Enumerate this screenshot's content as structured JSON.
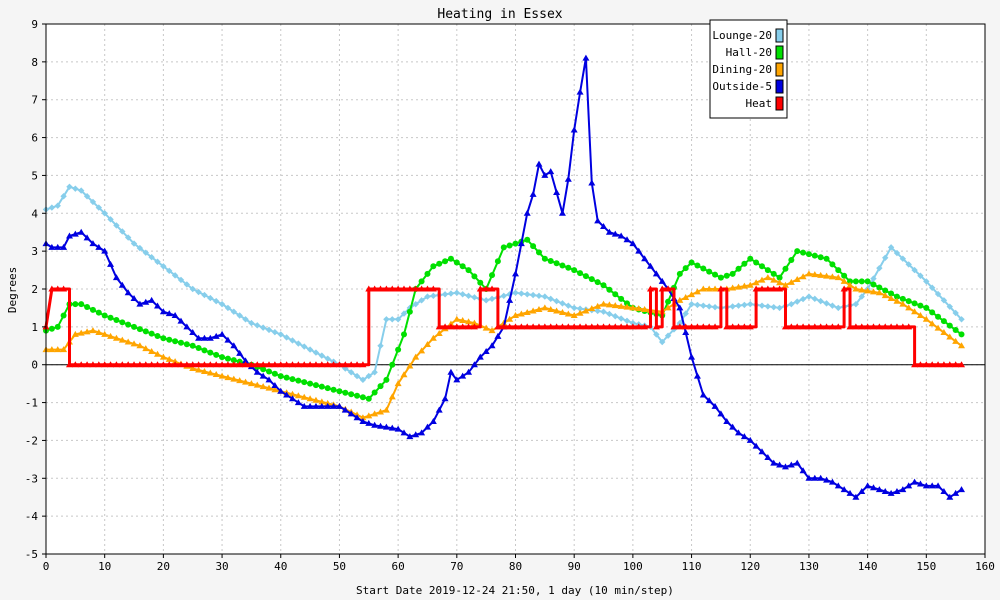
{
  "chart_data": {
    "type": "line",
    "title": "Heating in Essex",
    "xlabel": "Start Date 2019-12-24 21:50, 1 day (10 min/step)",
    "ylabel": "Degrees",
    "xlim": [
      0,
      160
    ],
    "ylim": [
      -5,
      9
    ],
    "x_ticks": [
      0,
      10,
      20,
      30,
      40,
      50,
      60,
      70,
      80,
      90,
      100,
      110,
      120,
      130,
      140,
      150,
      160
    ],
    "y_ticks": [
      -5,
      -4,
      -3,
      -2,
      -1,
      0,
      1,
      2,
      3,
      4,
      5,
      6,
      7,
      8,
      9
    ],
    "grid": true,
    "legend_position": "top-right",
    "series": [
      {
        "name": "Lounge-20",
        "color": "#87ceeb",
        "marker": "diamond",
        "points": [
          [
            0,
            4.1
          ],
          [
            2,
            4.2
          ],
          [
            4,
            4.7
          ],
          [
            6,
            4.6
          ],
          [
            10,
            4.0
          ],
          [
            15,
            3.2
          ],
          [
            20,
            2.6
          ],
          [
            25,
            2.0
          ],
          [
            30,
            1.6
          ],
          [
            35,
            1.1
          ],
          [
            40,
            0.8
          ],
          [
            45,
            0.4
          ],
          [
            50,
            0.0
          ],
          [
            54,
            -0.4
          ],
          [
            56,
            -0.2
          ],
          [
            58,
            1.2
          ],
          [
            60,
            1.2
          ],
          [
            62,
            1.5
          ],
          [
            65,
            1.8
          ],
          [
            70,
            1.9
          ],
          [
            75,
            1.7
          ],
          [
            80,
            1.9
          ],
          [
            85,
            1.8
          ],
          [
            90,
            1.5
          ],
          [
            95,
            1.4
          ],
          [
            100,
            1.1
          ],
          [
            103,
            1.0
          ],
          [
            105,
            0.6
          ],
          [
            108,
            1.1
          ],
          [
            110,
            1.6
          ],
          [
            115,
            1.5
          ],
          [
            120,
            1.6
          ],
          [
            125,
            1.5
          ],
          [
            127,
            1.6
          ],
          [
            130,
            1.8
          ],
          [
            135,
            1.5
          ],
          [
            138,
            1.6
          ],
          [
            140,
            2.0
          ],
          [
            144,
            3.1
          ],
          [
            150,
            2.2
          ],
          [
            156,
            1.2
          ]
        ]
      },
      {
        "name": "Hall-20",
        "color": "#00e000",
        "marker": "circle",
        "points": [
          [
            0,
            0.9
          ],
          [
            2,
            1.0
          ],
          [
            4,
            1.6
          ],
          [
            6,
            1.6
          ],
          [
            10,
            1.3
          ],
          [
            15,
            1.0
          ],
          [
            20,
            0.7
          ],
          [
            25,
            0.5
          ],
          [
            30,
            0.2
          ],
          [
            35,
            0.0
          ],
          [
            40,
            -0.3
          ],
          [
            45,
            -0.5
          ],
          [
            50,
            -0.7
          ],
          [
            55,
            -0.9
          ],
          [
            58,
            -0.4
          ],
          [
            61,
            0.8
          ],
          [
            63,
            2.0
          ],
          [
            66,
            2.6
          ],
          [
            69,
            2.8
          ],
          [
            72,
            2.5
          ],
          [
            75,
            2.0
          ],
          [
            78,
            3.1
          ],
          [
            82,
            3.3
          ],
          [
            85,
            2.8
          ],
          [
            90,
            2.5
          ],
          [
            95,
            2.1
          ],
          [
            100,
            1.5
          ],
          [
            105,
            1.3
          ],
          [
            108,
            2.4
          ],
          [
            110,
            2.7
          ],
          [
            115,
            2.3
          ],
          [
            117,
            2.4
          ],
          [
            120,
            2.8
          ],
          [
            125,
            2.3
          ],
          [
            128,
            3.0
          ],
          [
            133,
            2.8
          ],
          [
            137,
            2.2
          ],
          [
            140,
            2.2
          ],
          [
            145,
            1.8
          ],
          [
            150,
            1.5
          ],
          [
            156,
            0.8
          ]
        ]
      },
      {
        "name": "Dining-20",
        "color": "#ffa500",
        "marker": "triangle",
        "points": [
          [
            0,
            0.4
          ],
          [
            3,
            0.4
          ],
          [
            5,
            0.8
          ],
          [
            8,
            0.9
          ],
          [
            12,
            0.7
          ],
          [
            16,
            0.5
          ],
          [
            20,
            0.2
          ],
          [
            25,
            -0.1
          ],
          [
            30,
            -0.3
          ],
          [
            35,
            -0.5
          ],
          [
            40,
            -0.7
          ],
          [
            45,
            -0.9
          ],
          [
            50,
            -1.1
          ],
          [
            54,
            -1.4
          ],
          [
            58,
            -1.2
          ],
          [
            60,
            -0.5
          ],
          [
            63,
            0.2
          ],
          [
            66,
            0.7
          ],
          [
            70,
            1.2
          ],
          [
            73,
            1.1
          ],
          [
            76,
            0.9
          ],
          [
            80,
            1.3
          ],
          [
            85,
            1.5
          ],
          [
            90,
            1.3
          ],
          [
            95,
            1.6
          ],
          [
            100,
            1.5
          ],
          [
            105,
            1.4
          ],
          [
            108,
            1.7
          ],
          [
            112,
            2.0
          ],
          [
            116,
            2.0
          ],
          [
            120,
            2.1
          ],
          [
            123,
            2.3
          ],
          [
            126,
            2.1
          ],
          [
            130,
            2.4
          ],
          [
            135,
            2.3
          ],
          [
            138,
            2.0
          ],
          [
            142,
            1.9
          ],
          [
            146,
            1.6
          ],
          [
            150,
            1.2
          ],
          [
            156,
            0.5
          ]
        ]
      },
      {
        "name": "Outside-5",
        "color": "#0000e0",
        "marker": "triangle",
        "points": [
          [
            0,
            3.2
          ],
          [
            1,
            3.1
          ],
          [
            3,
            3.1
          ],
          [
            4,
            3.4
          ],
          [
            6,
            3.5
          ],
          [
            8,
            3.2
          ],
          [
            10,
            3.0
          ],
          [
            12,
            2.3
          ],
          [
            14,
            1.9
          ],
          [
            16,
            1.6
          ],
          [
            18,
            1.7
          ],
          [
            20,
            1.4
          ],
          [
            22,
            1.3
          ],
          [
            24,
            1.0
          ],
          [
            26,
            0.7
          ],
          [
            28,
            0.7
          ],
          [
            30,
            0.8
          ],
          [
            32,
            0.5
          ],
          [
            34,
            0.1
          ],
          [
            36,
            -0.2
          ],
          [
            38,
            -0.4
          ],
          [
            40,
            -0.7
          ],
          [
            42,
            -0.9
          ],
          [
            44,
            -1.1
          ],
          [
            46,
            -1.1
          ],
          [
            50,
            -1.1
          ],
          [
            52,
            -1.3
          ],
          [
            54,
            -1.5
          ],
          [
            56,
            -1.6
          ],
          [
            60,
            -1.7
          ],
          [
            62,
            -1.9
          ],
          [
            64,
            -1.8
          ],
          [
            66,
            -1.5
          ],
          [
            68,
            -0.9
          ],
          [
            69,
            -0.2
          ],
          [
            70,
            -0.4
          ],
          [
            72,
            -0.2
          ],
          [
            74,
            0.2
          ],
          [
            76,
            0.5
          ],
          [
            78,
            1.0
          ],
          [
            80,
            2.4
          ],
          [
            82,
            4.0
          ],
          [
            83,
            4.5
          ],
          [
            84,
            5.3
          ],
          [
            85,
            5.0
          ],
          [
            86,
            5.1
          ],
          [
            88,
            4.0
          ],
          [
            89,
            4.9
          ],
          [
            90,
            6.2
          ],
          [
            91,
            7.2
          ],
          [
            92,
            8.1
          ],
          [
            93,
            4.8
          ],
          [
            94,
            3.8
          ],
          [
            96,
            3.5
          ],
          [
            98,
            3.4
          ],
          [
            100,
            3.2
          ],
          [
            102,
            2.8
          ],
          [
            104,
            2.4
          ],
          [
            106,
            2.0
          ],
          [
            108,
            1.5
          ],
          [
            110,
            0.2
          ],
          [
            112,
            -0.8
          ],
          [
            114,
            -1.1
          ],
          [
            116,
            -1.5
          ],
          [
            118,
            -1.8
          ],
          [
            120,
            -2.0
          ],
          [
            122,
            -2.3
          ],
          [
            124,
            -2.6
          ],
          [
            126,
            -2.7
          ],
          [
            128,
            -2.6
          ],
          [
            130,
            -3.0
          ],
          [
            132,
            -3.0
          ],
          [
            134,
            -3.1
          ],
          [
            136,
            -3.3
          ],
          [
            138,
            -3.5
          ],
          [
            140,
            -3.2
          ],
          [
            142,
            -3.3
          ],
          [
            144,
            -3.4
          ],
          [
            146,
            -3.3
          ],
          [
            148,
            -3.1
          ],
          [
            150,
            -3.2
          ],
          [
            152,
            -3.2
          ],
          [
            154,
            -3.5
          ],
          [
            156,
            -3.3
          ]
        ]
      },
      {
        "name": "Heat",
        "color": "#ff0000",
        "marker": "triangle",
        "points": [
          [
            0,
            1
          ],
          [
            1,
            2
          ],
          [
            4,
            2
          ],
          [
            4,
            0
          ],
          [
            55,
            0
          ],
          [
            55,
            2
          ],
          [
            67,
            2
          ],
          [
            67,
            1
          ],
          [
            74,
            1
          ],
          [
            74,
            2
          ],
          [
            77,
            2
          ],
          [
            77,
            1
          ],
          [
            103,
            1
          ],
          [
            103,
            2
          ],
          [
            104,
            2
          ],
          [
            104,
            1
          ],
          [
            105,
            1
          ],
          [
            105,
            2
          ],
          [
            107,
            2
          ],
          [
            107,
            1
          ],
          [
            115,
            1
          ],
          [
            115,
            2
          ],
          [
            116,
            2
          ],
          [
            116,
            1
          ],
          [
            121,
            1
          ],
          [
            121,
            2
          ],
          [
            126,
            2
          ],
          [
            126,
            1
          ],
          [
            136,
            1
          ],
          [
            136,
            2
          ],
          [
            137,
            2
          ],
          [
            137,
            1
          ],
          [
            148,
            1
          ],
          [
            148,
            0
          ],
          [
            156,
            0
          ]
        ]
      }
    ]
  }
}
